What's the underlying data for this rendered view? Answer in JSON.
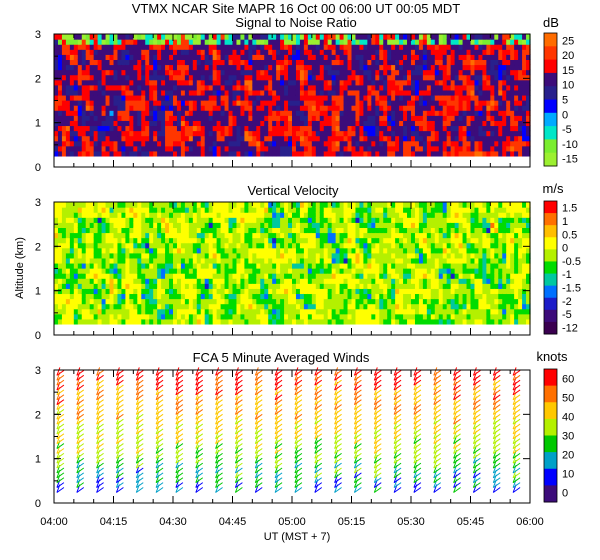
{
  "header": {
    "title": "VTMX   NCAR Site   MAPR 16 Oct 00   06:00 UT   00:05   MDT"
  },
  "chart_data": [
    {
      "type": "heatmap",
      "title": "Signal to Noise Ratio",
      "units": "dB",
      "ylabel": "",
      "ylim": [
        0,
        3
      ],
      "yticks": [
        "0",
        "1",
        "2",
        "3"
      ],
      "x_range": [
        0,
        120
      ],
      "data_altitude_range": [
        0.25,
        3.0
      ],
      "colorbar": {
        "labels": [
          "25",
          "20",
          "15",
          "10",
          "5",
          "0",
          "-5",
          "-10",
          "-15"
        ],
        "colors": [
          "#ff6c00",
          "#ff3600",
          "#ff0000",
          "#3c0c7a",
          "#28208c",
          "#0000ff",
          "#00aaff",
          "#00e6c8",
          "#7aee30",
          "#9cf030"
        ]
      }
    },
    {
      "type": "heatmap",
      "title": "Vertical Velocity",
      "units": "m/s",
      "ylabel": "Altitude (km)",
      "ylim": [
        0,
        3
      ],
      "yticks": [
        "0",
        "1",
        "2",
        "3"
      ],
      "x_range": [
        0,
        120
      ],
      "data_altitude_range": [
        0.25,
        3.0
      ],
      "colorbar": {
        "labels": [
          "1.5",
          "1",
          "0.5",
          "0",
          "-0.5",
          "-1",
          "-1.5",
          "-2",
          "-5",
          "-12"
        ],
        "colors": [
          "#ff0000",
          "#ff7000",
          "#ffbe00",
          "#ffff00",
          "#b4f000",
          "#00dc00",
          "#00c8a0",
          "#0070ff",
          "#1c1cc8",
          "#3c0c7a",
          "#3a0050"
        ]
      }
    },
    {
      "type": "wind_barbs",
      "title": "FCA 5 Minute Averaged Winds",
      "units": "knots",
      "ylim": [
        0,
        3
      ],
      "yticks": [
        "0",
        "1",
        "2",
        "3"
      ],
      "x_range": [
        0,
        120
      ],
      "profile_times_min": [
        2.5,
        7.5,
        12.5,
        17.5,
        22.5,
        27.5,
        32.5,
        37.5,
        42.5,
        47.5,
        52.5,
        57.5,
        62.5,
        67.5,
        72.5,
        77.5,
        82.5,
        87.5,
        92.5,
        97.5,
        102.5,
        107.5,
        112.5,
        117.5
      ],
      "colorbar": {
        "labels": [
          "60",
          "50",
          "40",
          "30",
          "20",
          "10",
          "0"
        ],
        "colors": [
          "#ff0000",
          "#ff7000",
          "#ffc800",
          "#b4f000",
          "#00c800",
          "#00a0c8",
          "#0000ff",
          "#3c0c7a"
        ]
      }
    }
  ],
  "x_axis": {
    "tick_labels": [
      "04:00",
      "04:15",
      "04:30",
      "04:45",
      "05:00",
      "05:15",
      "05:30",
      "05:45",
      "06:00"
    ],
    "tick_values_min": [
      0,
      15,
      30,
      45,
      60,
      75,
      90,
      105,
      120
    ],
    "label": "UT    (MST + 7)"
  }
}
